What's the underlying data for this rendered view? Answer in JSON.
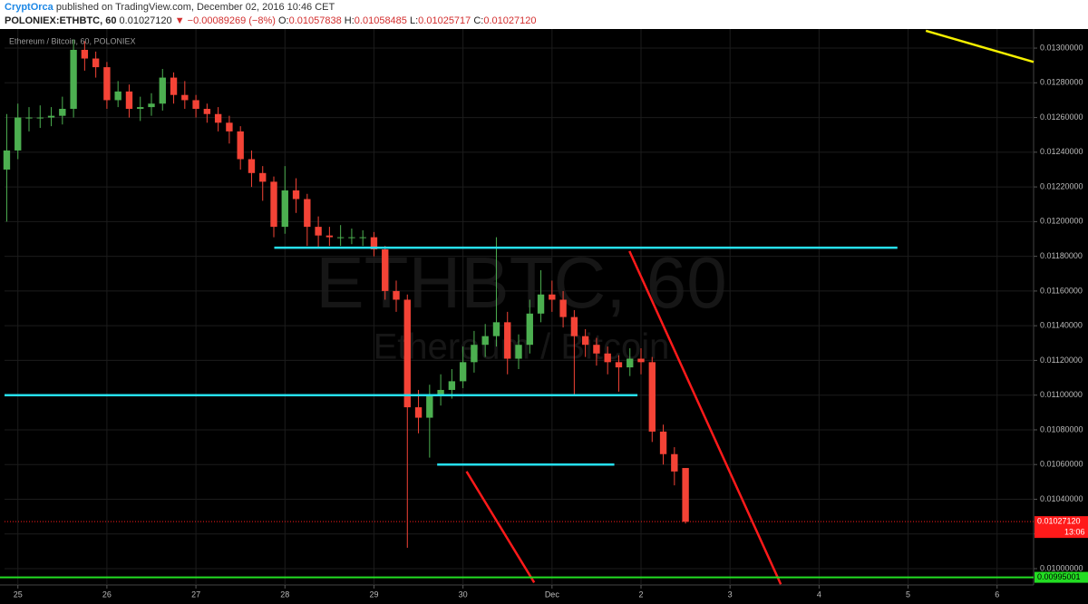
{
  "header": {
    "author": "CryptOrca",
    "published": "published on TradingView.com, December 02, 2016 10:46 CET",
    "symbol": "POLONIEX:ETHBTC, 60",
    "last": "0.01027120",
    "arrow": "▼",
    "change": "−0.00089269 (−8%)",
    "open_label": "O:",
    "open": "0.01057838",
    "high_label": "H:",
    "high": "0.01058485",
    "low_label": "L:",
    "low": "0.01025717",
    "close_label": "C:",
    "close": "0.01027120"
  },
  "chart_data": {
    "type": "candlestick",
    "legend": "Ethereum / Bitcoin, 60, POLONIEX",
    "watermark": {
      "symbol": "ETHBTC, 60",
      "name": "Ethereum / Bitcoin"
    },
    "up_color": "#4caf50",
    "down_color": "#f44336",
    "grid": true,
    "x": [
      -0.125,
      0,
      0.125,
      0.25,
      0.375,
      0.5,
      0.625,
      0.75,
      0.875,
      1,
      1.125,
      1.25,
      1.375,
      1.5,
      1.625,
      1.75,
      1.875,
      2,
      2.125,
      2.25,
      2.375,
      2.5,
      2.625,
      2.75,
      2.875,
      3,
      3.125,
      3.25,
      3.375,
      3.5,
      3.625,
      3.75,
      3.875,
      4,
      4.125,
      4.25,
      4.375,
      4.5,
      4.625,
      4.75,
      4.875,
      5,
      5.125,
      5.25,
      5.375,
      5.5,
      5.625,
      5.75,
      5.875,
      6,
      6.125,
      6.25,
      6.375,
      6.5,
      6.625,
      6.75,
      6.875,
      7,
      7.125,
      7.25,
      7.375,
      7.5
    ],
    "open": [
      0.0123,
      0.01241,
      0.0126,
      0.0126,
      0.0126,
      0.01261,
      0.01265,
      0.01299,
      0.01294,
      0.01289,
      0.0127,
      0.01275,
      0.01265,
      0.01266,
      0.01268,
      0.01283,
      0.01273,
      0.0127,
      0.01265,
      0.01262,
      0.01257,
      0.01252,
      0.01236,
      0.01228,
      0.01223,
      0.01197,
      0.01218,
      0.01213,
      0.01197,
      0.01192,
      0.01191,
      0.01191,
      0.01191,
      0.01191,
      0.01184,
      0.0116,
      0.01155,
      0.01093,
      0.01087,
      0.011,
      0.01103,
      0.01108,
      0.01119,
      0.01129,
      0.01134,
      0.01142,
      0.01121,
      0.01129,
      0.01147,
      0.01158,
      0.01155,
      0.01145,
      0.01134,
      0.01129,
      0.01124,
      0.01119,
      0.01116,
      0.01121,
      0.01119,
      0.01079,
      0.01066,
      0.01058
    ],
    "high": [
      0.01262,
      0.01268,
      0.01266,
      0.01267,
      0.01266,
      0.01272,
      0.01305,
      0.01304,
      0.01298,
      0.01292,
      0.01281,
      0.01279,
      0.01272,
      0.01274,
      0.01288,
      0.01286,
      0.01281,
      0.01273,
      0.01268,
      0.01266,
      0.01261,
      0.01255,
      0.01241,
      0.01232,
      0.01226,
      0.01232,
      0.01225,
      0.01216,
      0.01203,
      0.01197,
      0.01198,
      0.01196,
      0.01195,
      0.01194,
      0.01186,
      0.01166,
      0.01158,
      0.01103,
      0.01106,
      0.01112,
      0.01115,
      0.01128,
      0.01137,
      0.01141,
      0.01191,
      0.01148,
      0.01135,
      0.01155,
      0.01172,
      0.01166,
      0.0116,
      0.01149,
      0.01138,
      0.01133,
      0.01128,
      0.01123,
      0.01127,
      0.01127,
      0.01122,
      0.01083,
      0.0107,
      0.01058
    ],
    "low": [
      0.012,
      0.01236,
      0.01252,
      0.01254,
      0.01255,
      0.01256,
      0.0126,
      0.01287,
      0.01283,
      0.01265,
      0.01266,
      0.0126,
      0.01258,
      0.01261,
      0.01264,
      0.01268,
      0.01265,
      0.0126,
      0.01257,
      0.01252,
      0.01245,
      0.0123,
      0.0122,
      0.01212,
      0.01191,
      0.01193,
      0.01205,
      0.01186,
      0.01185,
      0.01186,
      0.01186,
      0.01187,
      0.01186,
      0.0118,
      0.01155,
      0.01148,
      0.01012,
      0.01078,
      0.01064,
      0.01094,
      0.01098,
      0.01104,
      0.01113,
      0.01122,
      0.01128,
      0.01112,
      0.01115,
      0.01124,
      0.01142,
      0.01148,
      0.01139,
      0.011,
      0.01122,
      0.01117,
      0.01112,
      0.01102,
      0.01111,
      0.01112,
      0.01073,
      0.0106,
      0.01048,
      0.01026
    ],
    "close": [
      0.01241,
      0.0126,
      0.0126,
      0.0126,
      0.01261,
      0.01265,
      0.01299,
      0.01294,
      0.01289,
      0.0127,
      0.01275,
      0.01265,
      0.01266,
      0.01268,
      0.01283,
      0.01273,
      0.0127,
      0.01265,
      0.01262,
      0.01257,
      0.01252,
      0.01236,
      0.01228,
      0.01223,
      0.01197,
      0.01218,
      0.01213,
      0.01197,
      0.01192,
      0.01191,
      0.01191,
      0.01191,
      0.01191,
      0.01184,
      0.0116,
      0.01155,
      0.01093,
      0.01087,
      0.011,
      0.01103,
      0.01108,
      0.01119,
      0.01129,
      0.01134,
      0.01142,
      0.01121,
      0.01129,
      0.01147,
      0.01158,
      0.01155,
      0.01145,
      0.01134,
      0.01129,
      0.01124,
      0.01119,
      0.01116,
      0.01121,
      0.01119,
      0.01079,
      0.01066,
      0.01056,
      0.01027
    ],
    "xlim": [
      -0.15,
      11.41
    ],
    "ylim": [
      0.009906,
      0.01311
    ],
    "xticks": [
      {
        "value": 0,
        "label": "25"
      },
      {
        "value": 1,
        "label": "26"
      },
      {
        "value": 2,
        "label": "27"
      },
      {
        "value": 3,
        "label": "28"
      },
      {
        "value": 4,
        "label": "29"
      },
      {
        "value": 5,
        "label": "30"
      },
      {
        "value": 6,
        "label": "Dec"
      },
      {
        "value": 7,
        "label": "2"
      },
      {
        "value": 8,
        "label": "3"
      },
      {
        "value": 9,
        "label": "4"
      },
      {
        "value": 10,
        "label": "5"
      },
      {
        "value": 11,
        "label": "6"
      }
    ],
    "yticks": [
      {
        "value": 0.01,
        "label": "0.01000000"
      },
      {
        "value": 0.0102,
        "label": "0.01020000"
      },
      {
        "value": 0.0104,
        "label": "0.01040000"
      },
      {
        "value": 0.0106,
        "label": "0.01060000"
      },
      {
        "value": 0.0108,
        "label": "0.01080000"
      },
      {
        "value": 0.011,
        "label": "0.01100000"
      },
      {
        "value": 0.0112,
        "label": "0.01120000"
      },
      {
        "value": 0.0114,
        "label": "0.01140000"
      },
      {
        "value": 0.0116,
        "label": "0.01160000"
      },
      {
        "value": 0.0118,
        "label": "0.01180000"
      },
      {
        "value": 0.012,
        "label": "0.01200000"
      },
      {
        "value": 0.0122,
        "label": "0.01220000"
      },
      {
        "value": 0.0124,
        "label": "0.01240000"
      },
      {
        "value": 0.0126,
        "label": "0.01260000"
      },
      {
        "value": 0.0128,
        "label": "0.01280000"
      },
      {
        "value": 0.013,
        "label": "0.01300000"
      }
    ],
    "drawings": [
      {
        "color": "#26e0f0",
        "points": [
          [
            2.88,
            0.01185
          ],
          [
            9.88,
            0.01185
          ]
        ]
      },
      {
        "color": "#26e0f0",
        "points": [
          [
            -0.15,
            0.011
          ],
          [
            6.96,
            0.011
          ]
        ]
      },
      {
        "color": "#26e0f0",
        "points": [
          [
            4.71,
            0.0106
          ],
          [
            6.7,
            0.0106
          ]
        ]
      },
      {
        "color": "#ff1a1a",
        "points": [
          [
            5.04,
            0.01056
          ],
          [
            5.8,
            0.00992
          ]
        ]
      },
      {
        "color": "#ff1a1a",
        "points": [
          [
            6.87,
            0.01183
          ],
          [
            8.57,
            0.00991
          ]
        ]
      },
      {
        "color": "#f5f000",
        "points": [
          [
            10.2,
            0.0131
          ],
          [
            11.41,
            0.01292
          ]
        ]
      }
    ],
    "price_line": {
      "value": 0.0102712,
      "label": "0.01027120",
      "countdown": "13:06",
      "color": "#ff1a1a"
    },
    "green_line": {
      "value": 0.00995001,
      "label": "0.00995001",
      "color": "#22dd22"
    }
  }
}
